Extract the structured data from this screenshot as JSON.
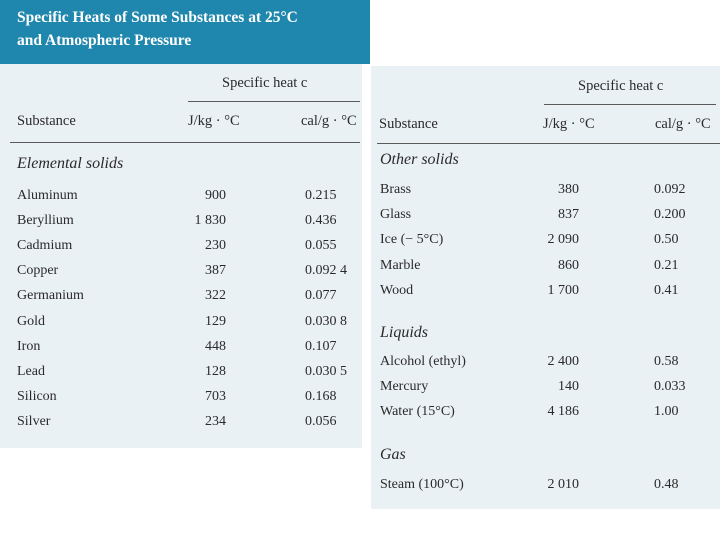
{
  "title": {
    "line1": "Specific Heats of Some Substances at 25°C",
    "line2": "and Atmospheric Pressure"
  },
  "headers": {
    "group": "Specific heat c",
    "substance": "Substance",
    "jkg": "J/kg · °C",
    "calg": "cal/g · °C"
  },
  "left": {
    "sections": [
      {
        "name": "Elemental solids",
        "rows": [
          {
            "substance": "Aluminum",
            "jkg": "900",
            "calg": "0.215"
          },
          {
            "substance": "Beryllium",
            "jkg": "1 830",
            "calg": "0.436"
          },
          {
            "substance": "Cadmium",
            "jkg": "230",
            "calg": "0.055"
          },
          {
            "substance": "Copper",
            "jkg": "387",
            "calg": "0.092 4"
          },
          {
            "substance": "Germanium",
            "jkg": "322",
            "calg": "0.077"
          },
          {
            "substance": "Gold",
            "jkg": "129",
            "calg": "0.030 8"
          },
          {
            "substance": "Iron",
            "jkg": "448",
            "calg": "0.107"
          },
          {
            "substance": "Lead",
            "jkg": "128",
            "calg": "0.030 5"
          },
          {
            "substance": "Silicon",
            "jkg": "703",
            "calg": "0.168"
          },
          {
            "substance": "Silver",
            "jkg": "234",
            "calg": "0.056"
          }
        ]
      }
    ]
  },
  "right": {
    "sections": [
      {
        "name": "Other solids",
        "rows": [
          {
            "substance": "Brass",
            "jkg": "380",
            "calg": "0.092"
          },
          {
            "substance": "Glass",
            "jkg": "837",
            "calg": "0.200"
          },
          {
            "substance": "Ice (− 5°C)",
            "jkg": "2 090",
            "calg": "0.50"
          },
          {
            "substance": "Marble",
            "jkg": "860",
            "calg": "0.21"
          },
          {
            "substance": "Wood",
            "jkg": "1 700",
            "calg": "0.41"
          }
        ]
      },
      {
        "name": "Liquids",
        "rows": [
          {
            "substance": "Alcohol (ethyl)",
            "jkg": "2 400",
            "calg": "0.58"
          },
          {
            "substance": "Mercury",
            "jkg": "140",
            "calg": "0.033"
          },
          {
            "substance": "Water (15°C)",
            "jkg": "4 186",
            "calg": "1.00"
          }
        ]
      },
      {
        "name": "Gas",
        "rows": [
          {
            "substance": "Steam (100°C)",
            "jkg": "2 010",
            "calg": "0.48"
          }
        ]
      }
    ]
  }
}
